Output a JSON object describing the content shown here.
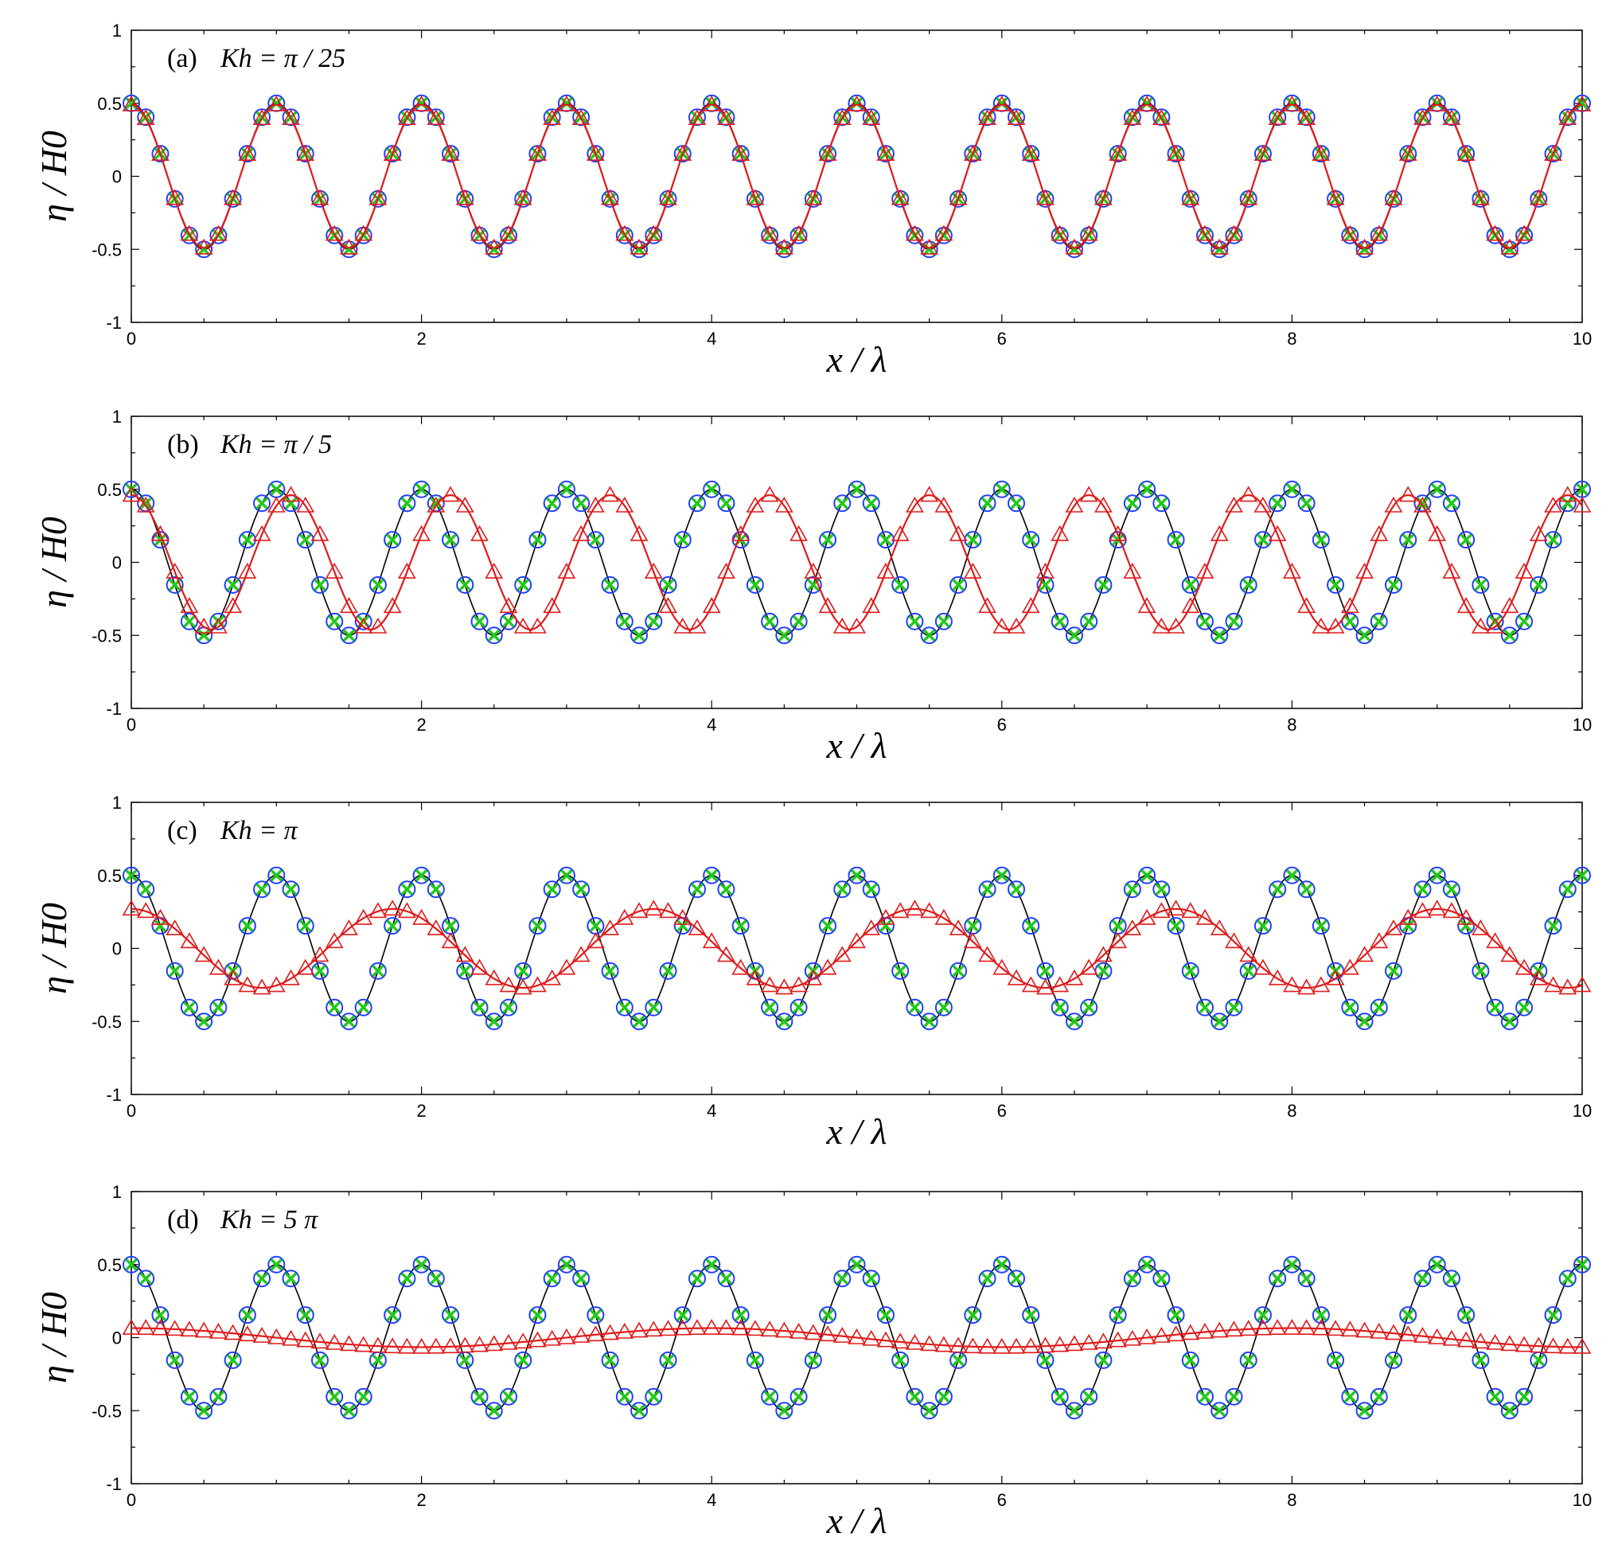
{
  "chart_data": [
    {
      "type": "line",
      "panel_label": "(a)",
      "title": "Kh = π / 25",
      "xlabel": "x / λ",
      "ylabel": "η / H0",
      "xlim": [
        0,
        10
      ],
      "ylim": [
        -1,
        1
      ],
      "xticks": [
        "0",
        "2",
        "4",
        "6",
        "8",
        "10"
      ],
      "yticks": [
        "1",
        "0.5",
        "0",
        "-0.5",
        "-1"
      ],
      "grid": false,
      "series": [
        {
          "marker": "line",
          "color": "#000000",
          "amplitude": 0.5,
          "wavelength": 1.0,
          "phase_deg": 0
        },
        {
          "marker": "circle",
          "color": "#1f3fff",
          "amplitude": 0.5,
          "wavelength": 1.0,
          "phase_deg": 0,
          "x_step": 0.1
        },
        {
          "marker": "x",
          "color": "#22c81e",
          "amplitude": 0.5,
          "wavelength": 1.0,
          "phase_deg": 0,
          "x_step": 0.1
        },
        {
          "marker": "triangle",
          "color": "#e01a1a",
          "amplitude": 0.49,
          "wavelength": 1.0,
          "phase_deg": 0,
          "x_step": 0.1
        },
        {
          "marker": "line",
          "color": "#e01a1a",
          "amplitude": 0.49,
          "wavelength": 1.0,
          "phase_deg": 0
        }
      ]
    },
    {
      "type": "line",
      "panel_label": "(b)",
      "title": "Kh = π / 5",
      "xlabel": "x / λ",
      "ylabel": "η / H0",
      "xlim": [
        0,
        10
      ],
      "ylim": [
        -1,
        1
      ],
      "xticks": [
        "0",
        "2",
        "4",
        "6",
        "8",
        "10"
      ],
      "yticks": [
        "1",
        "0.5",
        "0",
        "-0.5",
        "-1"
      ],
      "grid": false,
      "series": [
        {
          "marker": "line",
          "color": "#000000",
          "amplitude": 0.5,
          "wavelength": 1.0,
          "phase_deg": 0
        },
        {
          "marker": "circle",
          "color": "#1f3fff",
          "amplitude": 0.5,
          "wavelength": 1.0,
          "phase_deg": 0,
          "x_step": 0.1
        },
        {
          "marker": "x",
          "color": "#22c81e",
          "amplitude": 0.5,
          "wavelength": 1.0,
          "phase_deg": 0,
          "x_step": 0.1
        },
        {
          "marker": "triangle",
          "color": "#e01a1a",
          "amplitude": 0.46,
          "wavelength": 1.1,
          "phase_deg": 0,
          "x_step": 0.1
        },
        {
          "marker": "line",
          "color": "#e01a1a",
          "amplitude": 0.46,
          "wavelength": 1.1,
          "phase_deg": 0
        }
      ]
    },
    {
      "type": "line",
      "panel_label": "(c)",
      "title": "Kh = π",
      "xlabel": "x / λ",
      "ylabel": "η / H0",
      "xlim": [
        0,
        10
      ],
      "ylim": [
        -1,
        1
      ],
      "xticks": [
        "0",
        "2",
        "4",
        "6",
        "8",
        "10"
      ],
      "yticks": [
        "1",
        "0.5",
        "0",
        "-0.5",
        "-1"
      ],
      "grid": false,
      "series": [
        {
          "marker": "line",
          "color": "#000000",
          "amplitude": 0.5,
          "wavelength": 1.0,
          "phase_deg": 0
        },
        {
          "marker": "circle",
          "color": "#1f3fff",
          "amplitude": 0.5,
          "wavelength": 1.0,
          "phase_deg": 0,
          "x_step": 0.1
        },
        {
          "marker": "x",
          "color": "#22c81e",
          "amplitude": 0.5,
          "wavelength": 1.0,
          "phase_deg": 0,
          "x_step": 0.1
        },
        {
          "marker": "triangle",
          "color": "#e01a1a",
          "amplitude": 0.27,
          "wavelength": 1.8,
          "phase_deg": 0,
          "x_step": 0.1
        },
        {
          "marker": "line",
          "color": "#e01a1a",
          "amplitude": 0.27,
          "wavelength": 1.8,
          "phase_deg": 0
        }
      ]
    },
    {
      "type": "line",
      "panel_label": "(d)",
      "title": "Kh = 5 π",
      "xlabel": "x / λ",
      "ylabel": "η / H0",
      "xlim": [
        0,
        10
      ],
      "ylim": [
        -1,
        1
      ],
      "xticks": [
        "0",
        "2",
        "4",
        "6",
        "8",
        "10"
      ],
      "yticks": [
        "1",
        "0.5",
        "0",
        "-0.5",
        "-1"
      ],
      "grid": false,
      "series": [
        {
          "marker": "line",
          "color": "#000000",
          "amplitude": 0.5,
          "wavelength": 1.0,
          "phase_deg": 0
        },
        {
          "marker": "circle",
          "color": "#1f3fff",
          "amplitude": 0.5,
          "wavelength": 1.0,
          "phase_deg": 0,
          "x_step": 0.1
        },
        {
          "marker": "x",
          "color": "#22c81e",
          "amplitude": 0.5,
          "wavelength": 1.0,
          "phase_deg": 0,
          "x_step": 0.1
        },
        {
          "marker": "triangle",
          "color": "#e01a1a",
          "amplitude": 0.065,
          "wavelength": 4.0,
          "phase_deg": 0,
          "x_step": 0.1
        },
        {
          "marker": "line",
          "color": "#e01a1a",
          "amplitude": 0.065,
          "wavelength": 4.0,
          "phase_deg": 0
        }
      ]
    }
  ]
}
